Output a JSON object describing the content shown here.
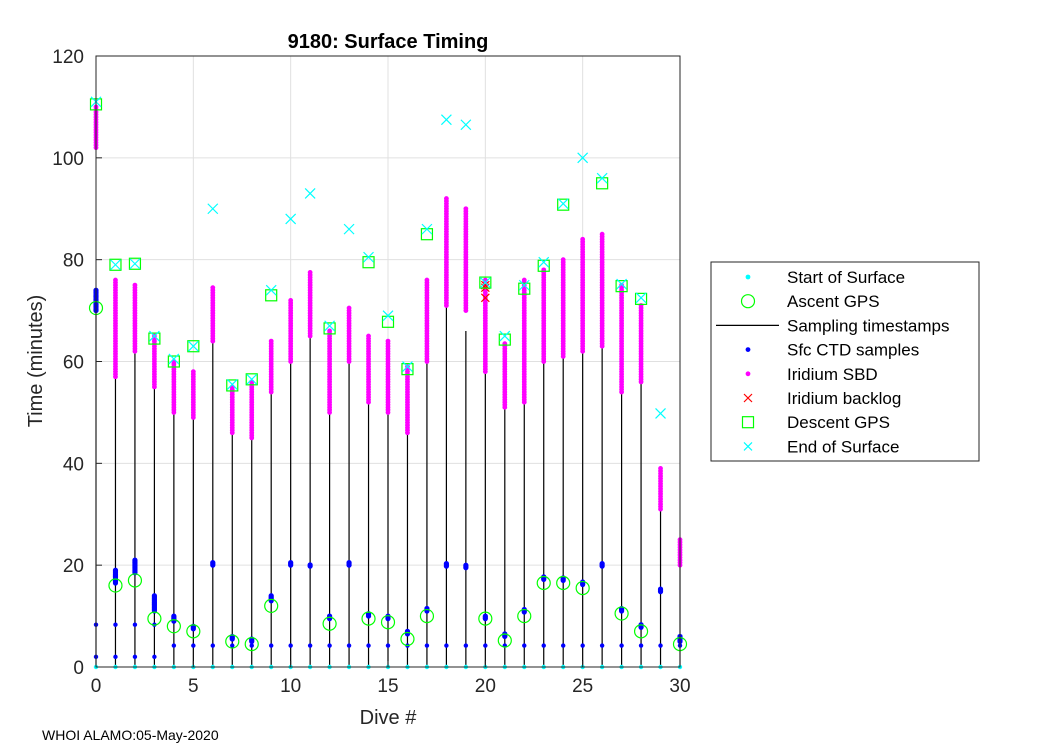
{
  "chart_data": {
    "type": "scatter",
    "title": "9180: Surface Timing",
    "xlabel": "Dive #",
    "ylabel": "Time (minutes)",
    "xlim": [
      0,
      30
    ],
    "ylim": [
      0,
      120
    ],
    "xticks": [
      "0",
      "5",
      "10",
      "15",
      "20",
      "25",
      "30"
    ],
    "yticks": [
      "0",
      "20",
      "40",
      "60",
      "80",
      "100",
      "120"
    ],
    "grid": true,
    "legend_position": "right",
    "legend": [
      {
        "label": "Start of Surface",
        "marker": "dot",
        "color": "#00ffff"
      },
      {
        "label": "Ascent GPS",
        "marker": "circle",
        "color": "#00ff00"
      },
      {
        "label": "Sampling timestamps",
        "marker": "line",
        "color": "#000000"
      },
      {
        "label": "Sfc CTD samples",
        "marker": "dot",
        "color": "#0000ff"
      },
      {
        "label": "Iridium SBD",
        "marker": "dot",
        "color": "#ff00ff"
      },
      {
        "label": "Iridium backlog",
        "marker": "x",
        "color": "#ff0000"
      },
      {
        "label": "Descent GPS",
        "marker": "square",
        "color": "#00ff00"
      },
      {
        "label": "End of Surface",
        "marker": "x",
        "color": "#00ffff"
      }
    ],
    "dives": [
      {
        "dive": 0,
        "ascent_gps": 70.5,
        "ctd_low": 2,
        "ctd_mid": 8.3,
        "ctd_high": [
          70,
          74
        ],
        "sampling": [
          0,
          74
        ],
        "sbd": [
          102,
          110
        ],
        "descent_gps": 110.5,
        "end": 111
      },
      {
        "dive": 1,
        "ascent_gps": 16,
        "ctd_low": 2,
        "ctd_mid": 8.3,
        "ctd_high": [
          16.5,
          19
        ],
        "sampling": [
          0,
          57
        ],
        "sbd": [
          57,
          76
        ],
        "descent_gps": 79,
        "end": 79
      },
      {
        "dive": 2,
        "ascent_gps": 17,
        "ctd_low": 2,
        "ctd_mid": 8.3,
        "ctd_high": [
          18.5,
          21
        ],
        "sampling": [
          0,
          62
        ],
        "sbd": [
          62,
          75
        ],
        "descent_gps": 79.2,
        "end": 79.2
      },
      {
        "dive": 3,
        "ascent_gps": 9.5,
        "ctd_low": 2,
        "ctd_mid": 8.3,
        "ctd_high": [
          11,
          14
        ],
        "sampling": [
          0,
          56
        ],
        "sbd": [
          55,
          65
        ],
        "descent_gps": 64.5,
        "end": 65
      },
      {
        "dive": 4,
        "ascent_gps": 8,
        "ctd_low": 4.2,
        "ctd_mid": null,
        "ctd_high": [
          9,
          10
        ],
        "sampling": [
          0,
          51
        ],
        "sbd": [
          50,
          60
        ],
        "descent_gps": 60,
        "end": 60.5
      },
      {
        "dive": 5,
        "ascent_gps": 7,
        "ctd_low": 4.2,
        "ctd_mid": null,
        "ctd_high": [
          7.5,
          8
        ],
        "sampling": [
          0,
          49
        ],
        "sbd": [
          49,
          58
        ],
        "descent_gps": 63,
        "end": 63
      },
      {
        "dive": 6,
        "ascent_gps": null,
        "ctd_low": 4.2,
        "ctd_mid": null,
        "ctd_high": [
          20,
          20.5
        ],
        "sampling": [
          0,
          64
        ],
        "sbd": [
          64,
          74.5
        ],
        "descent_gps": null,
        "end": 90
      },
      {
        "dive": 7,
        "ascent_gps": 5,
        "ctd_low": 4.2,
        "ctd_mid": null,
        "ctd_high": [
          5.5,
          6
        ],
        "sampling": [
          0,
          47
        ],
        "sbd": [
          46,
          55
        ],
        "descent_gps": 55.3,
        "end": 55.5
      },
      {
        "dive": 8,
        "ascent_gps": 4.5,
        "ctd_low": 4.2,
        "ctd_mid": null,
        "ctd_high": [
          5,
          5.5
        ],
        "sampling": [
          0,
          45
        ],
        "sbd": [
          45,
          56
        ],
        "descent_gps": 56.5,
        "end": 56.5
      },
      {
        "dive": 9,
        "ascent_gps": 12,
        "ctd_low": 4.2,
        "ctd_mid": null,
        "ctd_high": [
          13,
          14
        ],
        "sampling": [
          0,
          54
        ],
        "sbd": [
          54,
          64
        ],
        "descent_gps": 73,
        "end": 74
      },
      {
        "dive": 10,
        "ascent_gps": null,
        "ctd_low": 4.2,
        "ctd_mid": null,
        "ctd_high": [
          20,
          20.5
        ],
        "sampling": [
          0,
          60
        ],
        "sbd": [
          60,
          72
        ],
        "descent_gps": null,
        "end": 88
      },
      {
        "dive": 11,
        "ascent_gps": null,
        "ctd_low": 4.2,
        "ctd_mid": null,
        "ctd_high": [
          19.8,
          20.2
        ],
        "sampling": [
          0,
          68
        ],
        "sbd": [
          65,
          77.5
        ],
        "descent_gps": null,
        "end": 93
      },
      {
        "dive": 12,
        "ascent_gps": 8.5,
        "ctd_low": 4.2,
        "ctd_mid": null,
        "ctd_high": [
          9.5,
          10
        ],
        "sampling": [
          0,
          50
        ],
        "sbd": [
          50,
          66
        ],
        "descent_gps": 66.5,
        "end": 67
      },
      {
        "dive": 13,
        "ascent_gps": null,
        "ctd_low": 4.2,
        "ctd_mid": null,
        "ctd_high": [
          20,
          20.5
        ],
        "sampling": [
          0,
          60
        ],
        "sbd": [
          60,
          70.5
        ],
        "descent_gps": null,
        "end": 86
      },
      {
        "dive": 14,
        "ascent_gps": 9.5,
        "ctd_low": 4.2,
        "ctd_mid": null,
        "ctd_high": [
          10,
          10.5
        ],
        "sampling": [
          0,
          52
        ],
        "sbd": [
          52,
          65
        ],
        "descent_gps": 79.5,
        "end": 80.5
      },
      {
        "dive": 15,
        "ascent_gps": 8.8,
        "ctd_low": 4.2,
        "ctd_mid": null,
        "ctd_high": [
          9.5,
          10
        ],
        "sampling": [
          0,
          50
        ],
        "sbd": [
          50,
          64
        ],
        "descent_gps": 67.8,
        "end": 69
      },
      {
        "dive": 16,
        "ascent_gps": 5.5,
        "ctd_low": 4.2,
        "ctd_mid": null,
        "ctd_high": [
          6.5,
          7
        ],
        "sampling": [
          0,
          46
        ],
        "sbd": [
          46,
          59
        ],
        "descent_gps": 58.5,
        "end": 59
      },
      {
        "dive": 17,
        "ascent_gps": 10,
        "ctd_low": 4.2,
        "ctd_mid": null,
        "ctd_high": [
          11,
          11.5
        ],
        "sampling": [
          0,
          60
        ],
        "sbd": [
          60,
          76
        ],
        "descent_gps": 85,
        "end": 86
      },
      {
        "dive": 18,
        "ascent_gps": null,
        "ctd_low": 4.2,
        "ctd_mid": null,
        "ctd_high": [
          19.8,
          20.3
        ],
        "sampling": [
          0,
          71
        ],
        "sbd": [
          71,
          92
        ],
        "descent_gps": null,
        "end": 107.5
      },
      {
        "dive": 19,
        "ascent_gps": null,
        "ctd_low": 4.2,
        "ctd_mid": null,
        "ctd_high": [
          19.5,
          20.2
        ],
        "sampling": [
          0,
          66
        ],
        "sbd": [
          70,
          90
        ],
        "descent_gps": null,
        "end": 106.5
      },
      {
        "dive": 20,
        "ascent_gps": 9.5,
        "ctd_low": 4.2,
        "ctd_mid": null,
        "ctd_high": [
          9.5,
          10.2
        ],
        "sampling": [
          0,
          58
        ],
        "sbd": [
          58,
          76
        ],
        "backlog": [
          72.5,
          74.5,
          75
        ],
        "descent_gps": 75.5,
        "end": 75.5
      },
      {
        "dive": 21,
        "ascent_gps": 5.2,
        "ctd_low": 4.2,
        "ctd_mid": null,
        "ctd_high": [
          6,
          6.5
        ],
        "sampling": [
          0,
          51
        ],
        "sbd": [
          51,
          63.5
        ],
        "descent_gps": 64.3,
        "end": 65
      },
      {
        "dive": 22,
        "ascent_gps": 10,
        "ctd_low": 4.2,
        "ctd_mid": null,
        "ctd_high": [
          10.8,
          11.5
        ],
        "sampling": [
          0,
          52
        ],
        "sbd": [
          52,
          76
        ],
        "descent_gps": 74.3,
        "end": 75
      },
      {
        "dive": 23,
        "ascent_gps": 16.5,
        "ctd_low": 4.2,
        "ctd_mid": null,
        "ctd_high": [
          17.2,
          17.8
        ],
        "sampling": [
          0,
          60
        ],
        "sbd": [
          60,
          78
        ],
        "descent_gps": 78.8,
        "end": 79.5
      },
      {
        "dive": 24,
        "ascent_gps": 16.5,
        "ctd_low": 4.2,
        "ctd_mid": null,
        "ctd_high": [
          17,
          17.5
        ],
        "sampling": [
          0,
          61
        ],
        "sbd": [
          61,
          80
        ],
        "descent_gps": 90.8,
        "end": 91
      },
      {
        "dive": 25,
        "ascent_gps": 15.5,
        "ctd_low": 4.2,
        "ctd_mid": null,
        "ctd_high": [
          16.2,
          16.8
        ],
        "sampling": [
          0,
          62
        ],
        "sbd": [
          62,
          84
        ],
        "descent_gps": null,
        "end": 100
      },
      {
        "dive": 26,
        "ascent_gps": null,
        "ctd_low": 4.2,
        "ctd_mid": null,
        "ctd_high": [
          19.8,
          20.3
        ],
        "sampling": [
          0,
          63
        ],
        "sbd": [
          63,
          85
        ],
        "descent_gps": 95,
        "end": 96
      },
      {
        "dive": 27,
        "ascent_gps": 10.5,
        "ctd_low": 4.2,
        "ctd_mid": null,
        "ctd_high": [
          11,
          11.5
        ],
        "sampling": [
          0,
          54
        ],
        "sbd": [
          54,
          75
        ],
        "descent_gps": 74.8,
        "end": 75.2
      },
      {
        "dive": 28,
        "ascent_gps": 7,
        "ctd_low": 4.2,
        "ctd_mid": null,
        "ctd_high": [
          7.8,
          8.3
        ],
        "sampling": [
          0,
          56
        ],
        "sbd": [
          56,
          71
        ],
        "descent_gps": 72.3,
        "end": 72.5
      },
      {
        "dive": 29,
        "ascent_gps": null,
        "ctd_low": 4.2,
        "ctd_mid": null,
        "ctd_high": [
          14.8,
          15.3
        ],
        "sampling": [
          0,
          31
        ],
        "sbd": [
          31,
          39
        ],
        "descent_gps": null,
        "end": 49.8
      },
      {
        "dive": 30,
        "ascent_gps": 4.5,
        "ctd_low": 4.2,
        "ctd_mid": null,
        "ctd_high": [
          5,
          6
        ],
        "sampling": [
          0,
          21
        ],
        "sbd": [
          20,
          25
        ],
        "descent_gps": null,
        "end": null
      }
    ]
  },
  "footer": {
    "text": "WHOI ALAMO:05-May-2020"
  }
}
